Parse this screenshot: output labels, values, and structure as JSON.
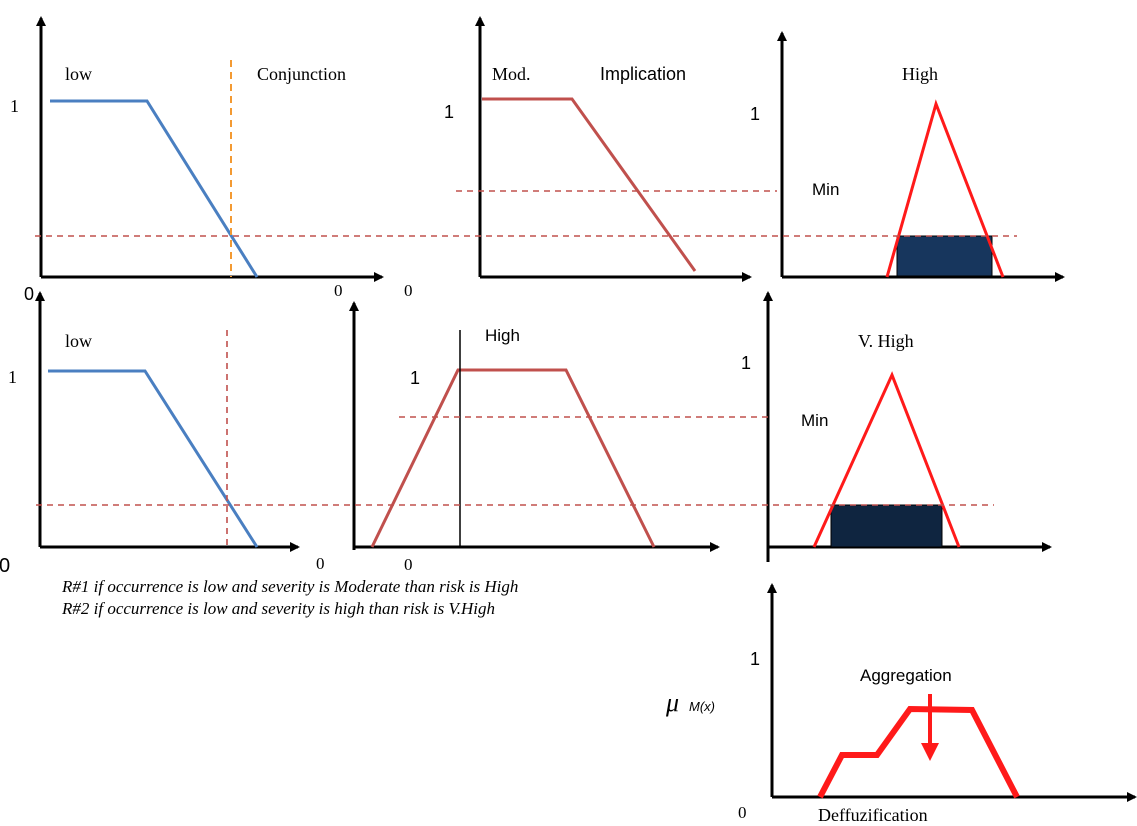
{
  "panel1": {
    "label": "low",
    "title": "Conjunction",
    "one": "1",
    "zero_origin": "0",
    "zero_end": "0"
  },
  "panel2": {
    "label": "Mod.",
    "title": "Implication",
    "one": "1",
    "zero_origin": "0"
  },
  "panel3": {
    "title": "High",
    "one": "1",
    "min": "Min"
  },
  "panel4": {
    "label": "low",
    "one": "1",
    "zero_origin": "0",
    "zero_end": "0"
  },
  "panel5": {
    "title": "High",
    "one": "1",
    "zero_origin": "0"
  },
  "panel6": {
    "title": "V. High",
    "one": "1",
    "min": "Min"
  },
  "rules": [
    "R#1 if occurrence is low and severity is Moderate than risk is High",
    "R#2 if occurrence is low and severity is high than risk is V.High"
  ],
  "aggregation_panel": {
    "one": "1",
    "mu": "μ",
    "mu_sub": "M(x)",
    "title": "Aggregation",
    "zero": "0",
    "bottom_label": "Deffuzification"
  },
  "colors": {
    "low_curve": "#4a7fc1",
    "input_curve": "#c0504d",
    "output_curve": "#ff1a1a",
    "clipped_area": "#17365d",
    "conjunction_line": "#f39a33"
  }
}
